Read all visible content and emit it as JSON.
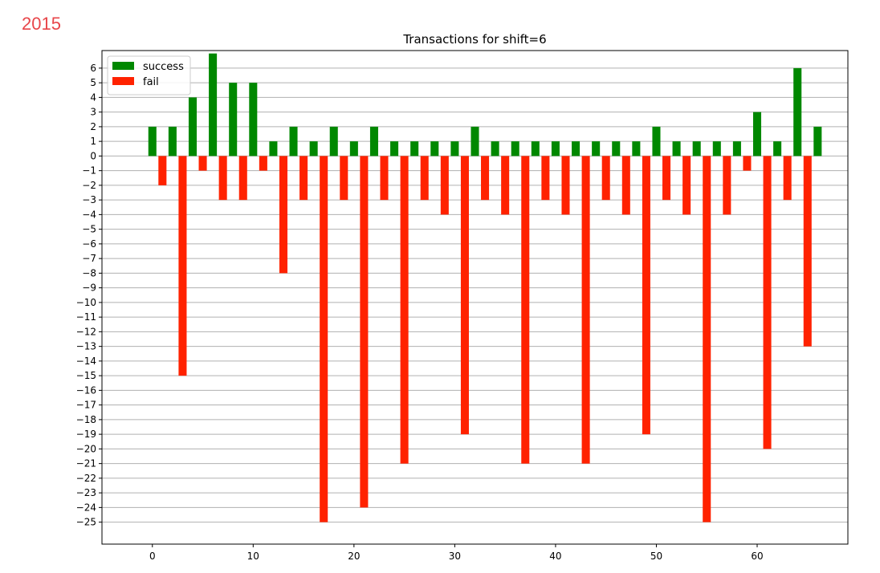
{
  "corner_label": "2015",
  "chart_data": {
    "type": "bar",
    "title": "Transactions for shift=6",
    "xlabel": "",
    "ylabel": "",
    "xlim": [
      -5,
      69
    ],
    "ylim": [
      -26.5,
      7.2
    ],
    "xticks": [
      0,
      10,
      20,
      30,
      40,
      50,
      60
    ],
    "yticks": [
      6,
      5,
      4,
      3,
      2,
      1,
      0,
      -1,
      -2,
      -3,
      -4,
      -5,
      -6,
      -7,
      -8,
      -9,
      -10,
      -11,
      -12,
      -13,
      -14,
      -15,
      -16,
      -17,
      -18,
      -19,
      -20,
      -21,
      -22,
      -23,
      -24,
      -25
    ],
    "grid": "horizontal",
    "legend_position": "top-left",
    "bar_width": 0.8,
    "series": [
      {
        "name": "success",
        "color": "#008800",
        "x": [
          0,
          2,
          4,
          6,
          8,
          10,
          12,
          14,
          16,
          18,
          20,
          22,
          24,
          26,
          28,
          30,
          32,
          34,
          36,
          38,
          40,
          42,
          44,
          46,
          48,
          50,
          52,
          54,
          56,
          58,
          60,
          62,
          64,
          66
        ],
        "values": [
          2,
          2,
          4,
          7,
          5,
          5,
          1,
          2,
          1,
          2,
          1,
          2,
          1,
          1,
          1,
          1,
          2,
          1,
          1,
          1,
          1,
          1,
          1,
          1,
          1,
          2,
          1,
          1,
          1,
          1,
          3,
          1,
          6,
          2
        ]
      },
      {
        "name": "fail",
        "color": "#ff2200",
        "x": [
          1,
          3,
          5,
          7,
          9,
          11,
          13,
          15,
          17,
          19,
          21,
          23,
          25,
          27,
          29,
          31,
          33,
          35,
          37,
          39,
          41,
          43,
          45,
          47,
          49,
          51,
          53,
          55,
          57,
          59,
          61,
          63,
          65
        ],
        "values": [
          -2,
          -15,
          -1,
          -3,
          -3,
          -1,
          -8,
          -3,
          -25,
          -3,
          -24,
          -3,
          -21,
          -3,
          -4,
          -19,
          -3,
          -4,
          -21,
          -3,
          -4,
          -21,
          -3,
          -4,
          -19,
          -3,
          -4,
          -25,
          -4,
          -1,
          -20,
          -3,
          -13
        ]
      }
    ]
  }
}
